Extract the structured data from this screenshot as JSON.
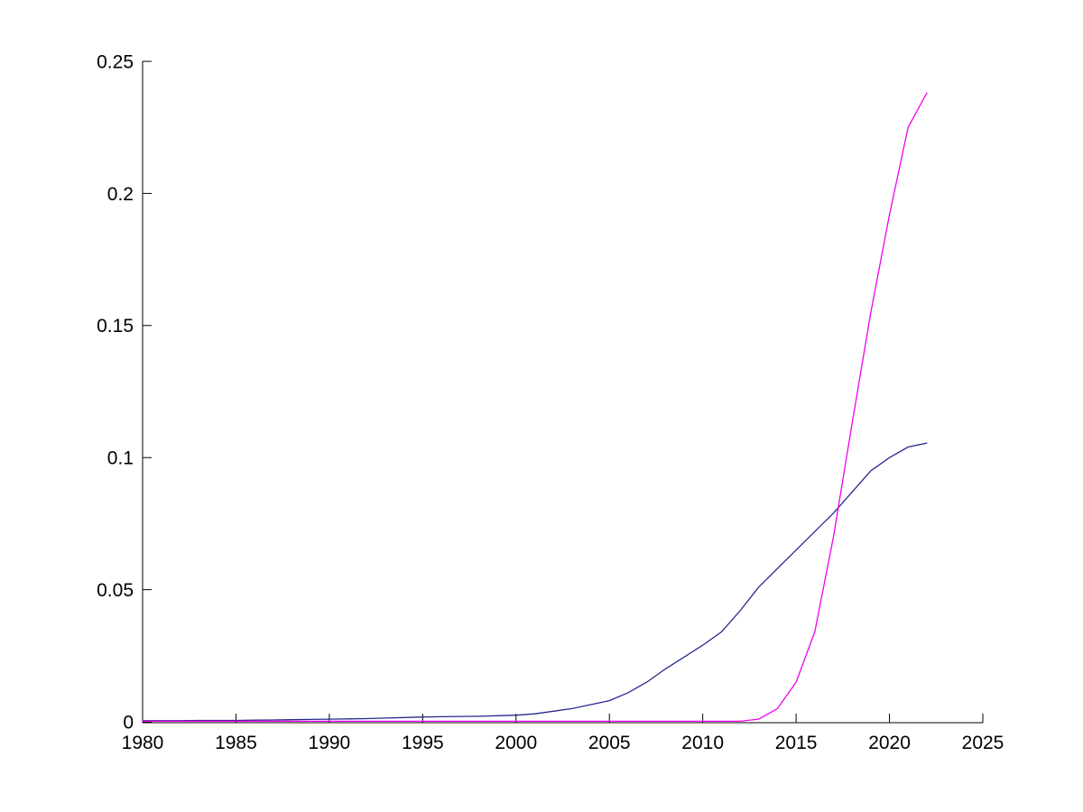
{
  "figure": {
    "background": "#ffffff",
    "axis_color": "#000000"
  },
  "chart_data": {
    "type": "line",
    "title": "",
    "xlabel": "",
    "ylabel": "",
    "grid": false,
    "legend_position": "none",
    "xlim": [
      1980,
      2025
    ],
    "ylim": [
      0,
      0.25
    ],
    "xticks": {
      "values": [
        1980,
        1985,
        1990,
        1995,
        2000,
        2005,
        2010,
        2015,
        2020,
        2025
      ],
      "labels": [
        "1980",
        "1985",
        "1990",
        "1995",
        "2000",
        "2005",
        "2010",
        "2015",
        "2020",
        "2025"
      ]
    },
    "yticks": {
      "values": [
        0,
        0.05,
        0.1,
        0.15,
        0.2,
        0.25
      ],
      "labels": [
        "0",
        "0.05",
        "0.1",
        "0.15",
        "0.2",
        "0.25"
      ]
    },
    "x": [
      1980,
      1981,
      1982,
      1983,
      1984,
      1985,
      1986,
      1987,
      1988,
      1989,
      1990,
      1991,
      1992,
      1993,
      1994,
      1995,
      1996,
      1997,
      1998,
      1999,
      2000,
      2001,
      2002,
      2003,
      2004,
      2005,
      2006,
      2007,
      2008,
      2009,
      2010,
      2011,
      2012,
      2013,
      2014,
      2015,
      2016,
      2017,
      2018,
      2019,
      2020,
      2021,
      2022
    ],
    "series": [
      {
        "name": "dark-blue-series",
        "color": "#28288F",
        "values": [
          0.0004,
          0.0004,
          0.0004,
          0.0005,
          0.0005,
          0.0005,
          0.0006,
          0.0007,
          0.0008,
          0.0009,
          0.001,
          0.0011,
          0.0012,
          0.0014,
          0.0016,
          0.0018,
          0.0019,
          0.002,
          0.0021,
          0.0023,
          0.0025,
          0.003,
          0.004,
          0.005,
          0.0065,
          0.008,
          0.011,
          0.015,
          0.02,
          0.0245,
          0.029,
          0.034,
          0.042,
          0.051,
          0.058,
          0.065,
          0.072,
          0.079,
          0.087,
          0.095,
          0.1,
          0.104,
          0.1055
        ]
      },
      {
        "name": "magenta-series",
        "color": "#EE00EE",
        "values": [
          0.0002,
          0.0002,
          0.0002,
          0.0002,
          0.0002,
          0.0002,
          0.0002,
          0.0002,
          0.0002,
          0.0002,
          0.0002,
          0.0002,
          0.0002,
          0.0002,
          0.0002,
          0.0002,
          0.0002,
          0.0002,
          0.0002,
          0.0002,
          0.0002,
          0.0002,
          0.0002,
          0.0002,
          0.0002,
          0.0002,
          0.0002,
          0.0002,
          0.0002,
          0.0002,
          0.0002,
          0.0002,
          0.0002,
          0.001,
          0.005,
          0.015,
          0.034,
          0.07,
          0.113,
          0.155,
          0.192,
          0.225,
          0.238
        ]
      }
    ]
  }
}
